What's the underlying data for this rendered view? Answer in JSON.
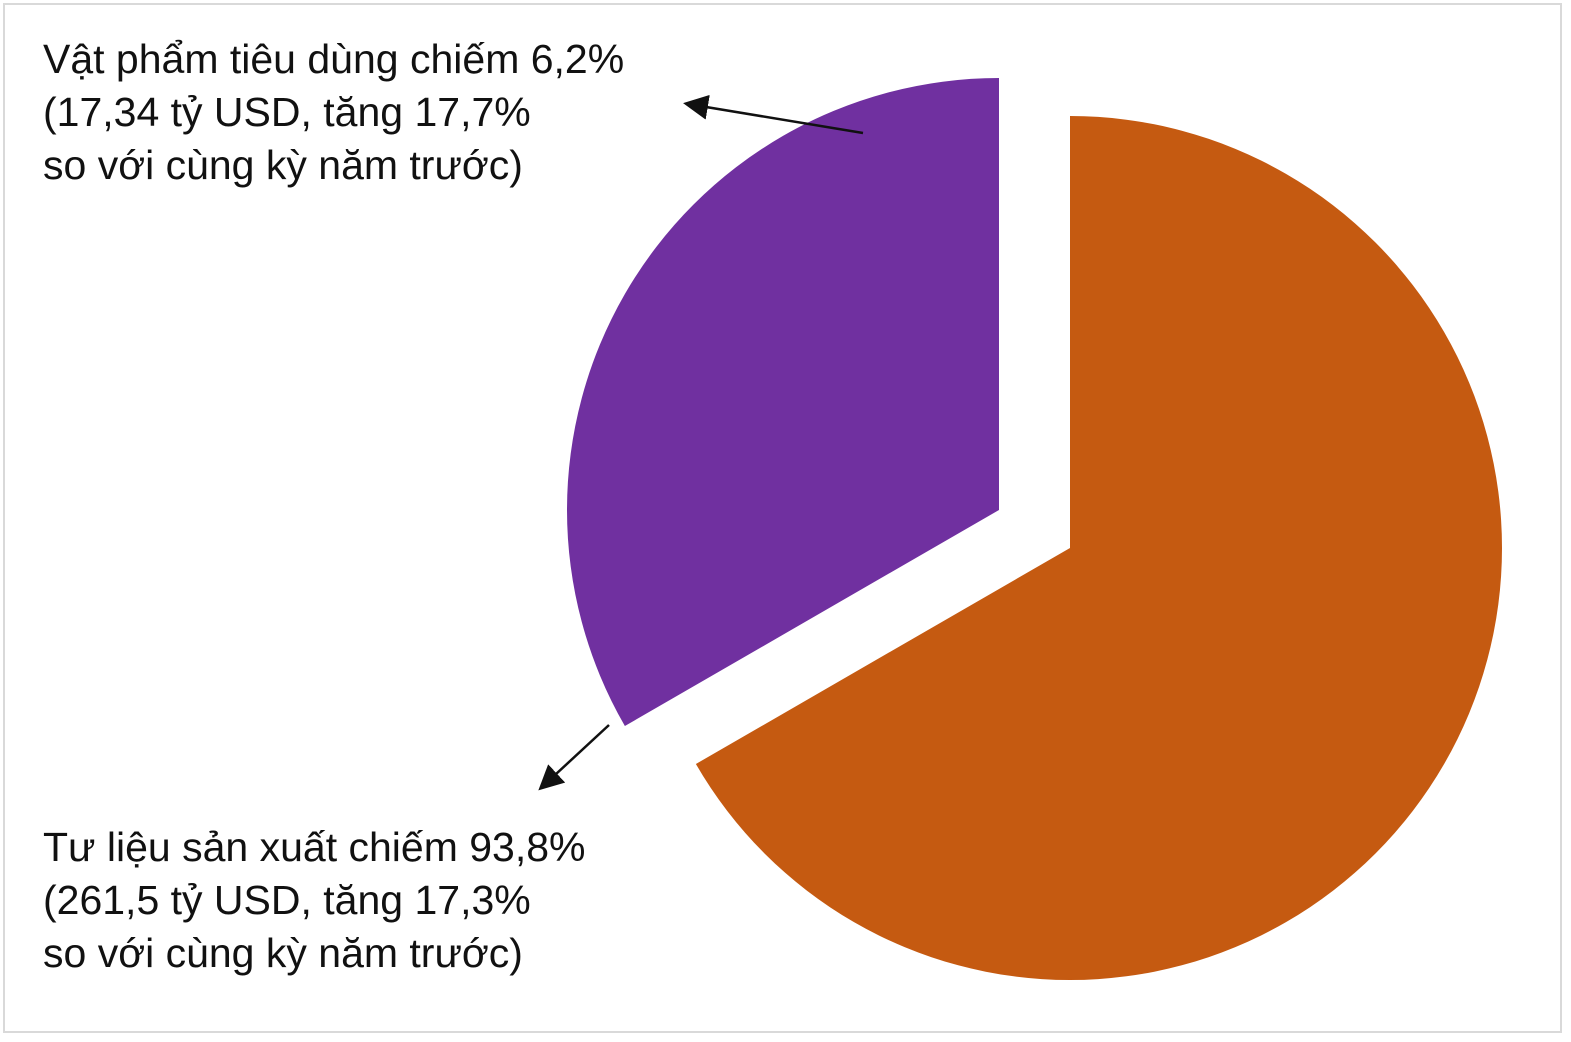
{
  "colors": {
    "consumer": "#7030A0",
    "production": "#C55A11",
    "frame": "#D9D9D9",
    "text": "#111111"
  },
  "chart_data": {
    "type": "pie",
    "title": "",
    "slices": [
      {
        "name": "Vật phẩm tiêu dùng",
        "percent": 6.2,
        "value": 17.34,
        "unit": "tỷ USD",
        "growth_percent": 17.7,
        "exploded": true,
        "color": "#7030A0"
      },
      {
        "name": "Tư liệu sản xuất",
        "percent": 93.8,
        "value": 261.5,
        "unit": "tỷ USD",
        "growth_percent": 17.3,
        "exploded": true,
        "color": "#C55A11"
      }
    ],
    "annotations": [
      {
        "slice": "Vật phẩm tiêu dùng",
        "lines": [
          "Vật phẩm tiêu dùng chiếm 6,2%",
          "(17,34 tỷ USD, tăng 17,7%",
          "so với cùng kỳ năm trước)"
        ]
      },
      {
        "slice": "Tư liệu sản xuất",
        "lines": [
          "Tư liệu sản xuất chiếm 93,8%",
          "(261,5 tỷ USD, tăng 17,3%",
          "so với cùng kỳ năm trước)"
        ]
      }
    ]
  }
}
